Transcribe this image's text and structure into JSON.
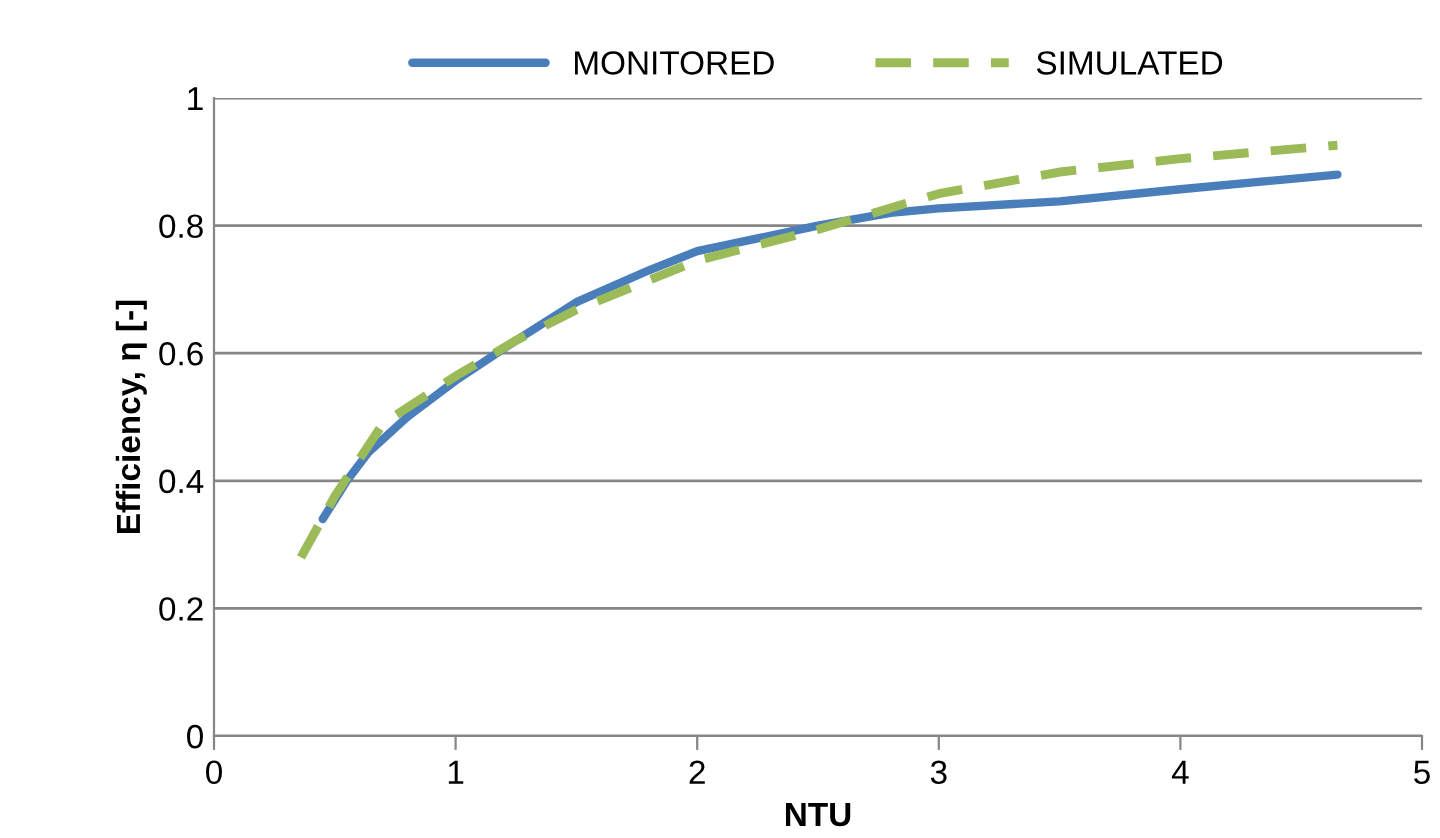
{
  "chart_data": {
    "type": "line",
    "xlabel": "NTU",
    "ylabel": "Efficiency, η [-]",
    "xlim": [
      0,
      5
    ],
    "xticks": [
      0,
      1,
      2,
      3,
      4,
      5
    ],
    "ylim": [
      0,
      1
    ],
    "yticks": [
      0,
      0.2,
      0.4,
      0.6,
      0.8,
      1
    ],
    "grid": "y",
    "legend": "top",
    "series": [
      {
        "name": "MONITORED",
        "color": "#4a7ebb",
        "line_style": "solid",
        "x": [
          0.45,
          0.55,
          0.64,
          0.8,
          1,
          1.25,
          1.5,
          1.8,
          2,
          2.25,
          2.5,
          2.8,
          3,
          3.5,
          4,
          4.65
        ],
        "values": [
          0.34,
          0.4,
          0.445,
          0.5,
          0.557,
          0.62,
          0.68,
          0.73,
          0.76,
          0.78,
          0.8,
          0.82,
          0.827,
          0.838,
          0.857,
          0.88
        ]
      },
      {
        "name": "SIMULATED",
        "color": "#9bbb59",
        "line_style": "dashed",
        "x": [
          0.36,
          0.5,
          0.7,
          1,
          1.25,
          1.5,
          2,
          2.5,
          3,
          3.5,
          4,
          4.65
        ],
        "values": [
          0.28,
          0.376,
          0.49,
          0.564,
          0.62,
          0.668,
          0.745,
          0.794,
          0.85,
          0.884,
          0.905,
          0.926
        ]
      }
    ]
  }
}
